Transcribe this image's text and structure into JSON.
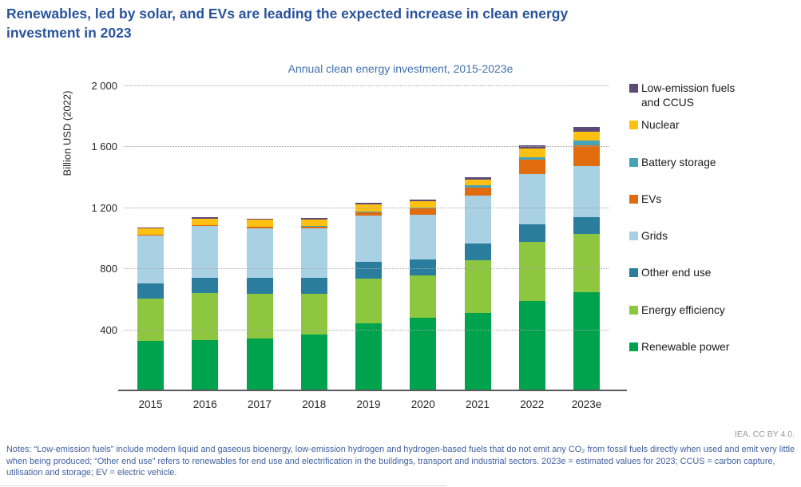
{
  "header": {
    "title_line1": "Renewables, led by solar, and EVs are leading the expected increase in clean energy",
    "title_line2": "investment in 2023"
  },
  "chart_data": {
    "type": "bar",
    "stacked": true,
    "title": "Annual clean energy investment, 2015-2023e",
    "xlabel": "",
    "ylabel": "Billion USD (2022)",
    "ylim": [
      0,
      2000
    ],
    "grid": "horizontal-dotted",
    "legend_position": "right",
    "categories": [
      "2015",
      "2016",
      "2017",
      "2018",
      "2019",
      "2020",
      "2021",
      "2022",
      "2023e"
    ],
    "y_ticks": [
      {
        "value": 400,
        "label": "400"
      },
      {
        "value": 800,
        "label": "800"
      },
      {
        "value": 1200,
        "label": "1 200"
      },
      {
        "value": 1600,
        "label": "1 600"
      },
      {
        "value": 2000,
        "label": "2 000"
      }
    ],
    "series_bottom_to_top": [
      {
        "name": "Renewable power",
        "color": "#00A34D",
        "values": [
          330,
          335,
          345,
          370,
          445,
          480,
          510,
          590,
          650
        ]
      },
      {
        "name": "Energy efficiency",
        "color": "#8DC73F",
        "values": [
          275,
          310,
          295,
          270,
          290,
          280,
          350,
          390,
          380
        ]
      },
      {
        "name": "Other end use",
        "color": "#2B7D9D",
        "values": [
          100,
          100,
          105,
          105,
          110,
          105,
          110,
          113,
          108
        ]
      },
      {
        "name": "Grids",
        "color": "#A9D1E4",
        "values": [
          315,
          335,
          320,
          320,
          305,
          290,
          310,
          330,
          335
        ]
      },
      {
        "name": "EVs",
        "color": "#E06C0D",
        "values": [
          5,
          7,
          10,
          15,
          22,
          40,
          56,
          91,
          138
        ]
      },
      {
        "name": "Battery storage",
        "color": "#47A4B8",
        "values": [
          1,
          1,
          2,
          4,
          5,
          7,
          13,
          19,
          31
        ]
      },
      {
        "name": "Nuclear",
        "color": "#FEC011",
        "values": [
          40,
          42,
          45,
          40,
          46,
          43,
          38,
          58,
          58
        ]
      },
      {
        "name": "Low-emission fuels and CCUS",
        "color": "#5D4A78",
        "values": [
          8,
          8,
          8,
          9,
          10,
          12,
          14,
          22,
          30
        ]
      }
    ],
    "legend_top_to_bottom": [
      {
        "label": "Low-emission fuels and CCUS",
        "color": "#5D4A78"
      },
      {
        "label": "Nuclear",
        "color": "#FEC011"
      },
      {
        "label": "Battery storage",
        "color": "#47A4B8"
      },
      {
        "label": "EVs",
        "color": "#E06C0D"
      },
      {
        "label": "Grids",
        "color": "#A9D1E4"
      },
      {
        "label": "Other end use",
        "color": "#2B7D9D"
      },
      {
        "label": "Energy efficiency",
        "color": "#8DC73F"
      },
      {
        "label": "Renewable power",
        "color": "#00A34D"
      }
    ]
  },
  "footer": {
    "credit": "IEA. CC BY 4.0.",
    "notes": "Notes: “Low-emission fuels” include modern liquid and gaseous bioenergy, low-emission hydrogen and hydrogen-based fuels that do not emit any CO₂ from fossil fuels directly when used and emit very little when being produced; “Other end use” refers to renewables for end use and electrification in the buildings, transport and industrial sectors. 2023e = estimated values for 2023; CCUS = carbon capture, utilisation and storage; EV = electric vehicle."
  }
}
